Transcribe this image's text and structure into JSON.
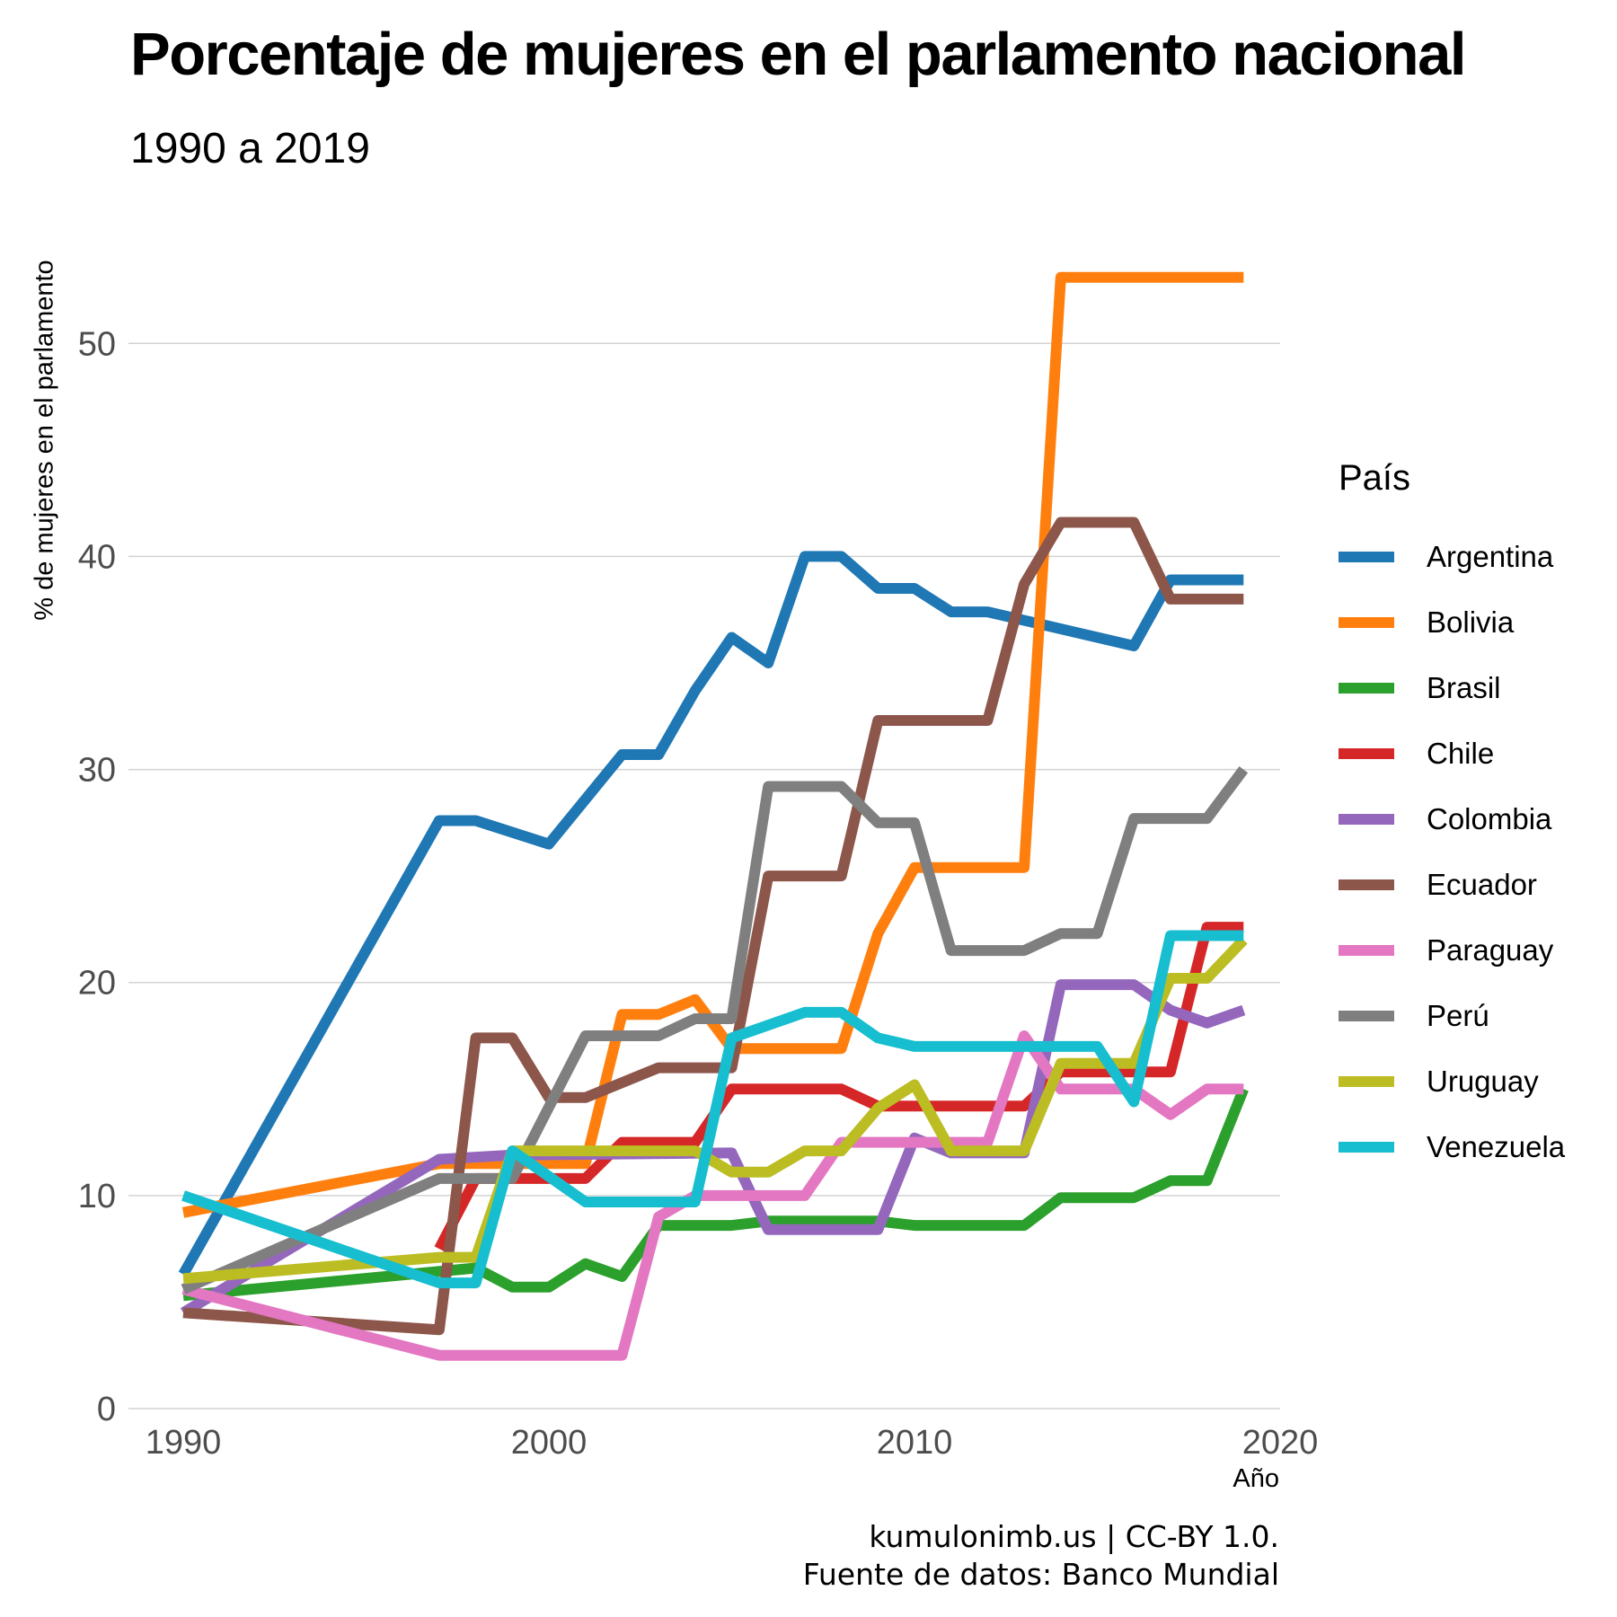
{
  "chart_data": {
    "type": "line",
    "title": "Porcentaje de mujeres en el parlamento nacional",
    "subtitle": "1990 a 2019",
    "xlabel": "Año",
    "ylabel": "% de mujeres en el parlamento",
    "legend_title": "País",
    "caption_line1": "kumulonimb.us | CC-BY 1.0.",
    "caption_line2": "Fuente de datos: Banco Mundial",
    "xlim": [
      1988.5,
      2020
    ],
    "ylim": [
      0,
      56
    ],
    "x_ticks": [
      1990,
      2000,
      2010,
      2020
    ],
    "y_ticks": [
      0,
      10,
      20,
      30,
      40,
      50
    ],
    "grid": "horizontal",
    "legend_position": "right",
    "series": [
      {
        "name": "Argentina",
        "color": "#1f77b4",
        "points": [
          [
            1990,
            6.3
          ],
          [
            1997,
            27.6
          ],
          [
            1998,
            27.6
          ],
          [
            2000,
            26.5
          ],
          [
            2002,
            30.7
          ],
          [
            2003,
            30.7
          ],
          [
            2004,
            33.7
          ],
          [
            2005,
            36.2
          ],
          [
            2006,
            35.0
          ],
          [
            2007,
            40.0
          ],
          [
            2008,
            40.0
          ],
          [
            2009,
            38.5
          ],
          [
            2010,
            38.5
          ],
          [
            2011,
            37.4
          ],
          [
            2012,
            37.4
          ],
          [
            2016,
            35.8
          ],
          [
            2017,
            38.9
          ],
          [
            2019,
            38.9
          ]
        ]
      },
      {
        "name": "Bolivia",
        "color": "#ff7f0e",
        "points": [
          [
            1990,
            9.2
          ],
          [
            1997,
            11.5
          ],
          [
            2001,
            11.5
          ],
          [
            2002,
            18.5
          ],
          [
            2003,
            18.5
          ],
          [
            2004,
            19.2
          ],
          [
            2005,
            16.9
          ],
          [
            2008,
            16.9
          ],
          [
            2009,
            22.3
          ],
          [
            2010,
            25.4
          ],
          [
            2013,
            25.4
          ],
          [
            2014,
            53.1
          ],
          [
            2019,
            53.1
          ]
        ]
      },
      {
        "name": "Brasil",
        "color": "#2ca02c",
        "points": [
          [
            1990,
            5.3
          ],
          [
            1998,
            6.6
          ],
          [
            1999,
            5.7
          ],
          [
            2000,
            5.7
          ],
          [
            2001,
            6.8
          ],
          [
            2002,
            6.2
          ],
          [
            2003,
            8.6
          ],
          [
            2005,
            8.6
          ],
          [
            2006,
            8.8
          ],
          [
            2009,
            8.8
          ],
          [
            2010,
            8.6
          ],
          [
            2013,
            8.6
          ],
          [
            2014,
            9.9
          ],
          [
            2016,
            9.9
          ],
          [
            2017,
            10.7
          ],
          [
            2018,
            10.7
          ],
          [
            2019,
            15.0
          ]
        ]
      },
      {
        "name": "Chile",
        "color": "#d62728",
        "points": [
          [
            1997,
            7.5
          ],
          [
            1998,
            10.8
          ],
          [
            2001,
            10.8
          ],
          [
            2002,
            12.5
          ],
          [
            2004,
            12.5
          ],
          [
            2005,
            15.0
          ],
          [
            2008,
            15.0
          ],
          [
            2009,
            14.2
          ],
          [
            2013,
            14.2
          ],
          [
            2014,
            15.8
          ],
          [
            2017,
            15.8
          ],
          [
            2018,
            22.6
          ],
          [
            2019,
            22.6
          ]
        ]
      },
      {
        "name": "Colombia",
        "color": "#9467bd",
        "points": [
          [
            1990,
            4.5
          ],
          [
            1997,
            11.7
          ],
          [
            1999,
            11.9
          ],
          [
            2005,
            12.0
          ],
          [
            2006,
            8.4
          ],
          [
            2009,
            8.4
          ],
          [
            2010,
            12.7
          ],
          [
            2011,
            12.0
          ],
          [
            2013,
            12.0
          ],
          [
            2014,
            19.9
          ],
          [
            2016,
            19.9
          ],
          [
            2017,
            18.7
          ],
          [
            2018,
            18.1
          ],
          [
            2019,
            18.7
          ]
        ]
      },
      {
        "name": "Ecuador",
        "color": "#8c564b",
        "points": [
          [
            1990,
            4.5
          ],
          [
            1997,
            3.7
          ],
          [
            1998,
            17.4
          ],
          [
            1999,
            17.4
          ],
          [
            2000,
            14.6
          ],
          [
            2001,
            14.6
          ],
          [
            2003,
            16.0
          ],
          [
            2005,
            16.0
          ],
          [
            2006,
            25.0
          ],
          [
            2008,
            25.0
          ],
          [
            2009,
            32.3
          ],
          [
            2012,
            32.3
          ],
          [
            2013,
            38.7
          ],
          [
            2014,
            41.6
          ],
          [
            2016,
            41.6
          ],
          [
            2017,
            38.0
          ],
          [
            2019,
            38.0
          ]
        ]
      },
      {
        "name": "Paraguay",
        "color": "#e377c2",
        "points": [
          [
            1990,
            5.6
          ],
          [
            1997,
            2.5
          ],
          [
            2002,
            2.5
          ],
          [
            2003,
            9.0
          ],
          [
            2004,
            10.0
          ],
          [
            2007,
            10.0
          ],
          [
            2008,
            12.5
          ],
          [
            2012,
            12.5
          ],
          [
            2013,
            17.5
          ],
          [
            2014,
            15.0
          ],
          [
            2016,
            15.0
          ],
          [
            2017,
            13.8
          ],
          [
            2018,
            15.0
          ],
          [
            2019,
            15.0
          ]
        ]
      },
      {
        "name": "Perú",
        "color": "#7f7f7f",
        "points": [
          [
            1990,
            5.6
          ],
          [
            1997,
            10.8
          ],
          [
            1999,
            10.8
          ],
          [
            2001,
            17.5
          ],
          [
            2003,
            17.5
          ],
          [
            2004,
            18.3
          ],
          [
            2005,
            18.3
          ],
          [
            2006,
            29.2
          ],
          [
            2008,
            29.2
          ],
          [
            2009,
            27.5
          ],
          [
            2010,
            27.5
          ],
          [
            2011,
            21.5
          ],
          [
            2013,
            21.5
          ],
          [
            2014,
            22.3
          ],
          [
            2015,
            22.3
          ],
          [
            2016,
            27.7
          ],
          [
            2018,
            27.7
          ],
          [
            2019,
            30.0
          ]
        ]
      },
      {
        "name": "Uruguay",
        "color": "#bcbd22",
        "points": [
          [
            1990,
            6.1
          ],
          [
            1997,
            7.1
          ],
          [
            1998,
            7.1
          ],
          [
            1999,
            12.1
          ],
          [
            2004,
            12.1
          ],
          [
            2005,
            11.1
          ],
          [
            2006,
            11.1
          ],
          [
            2007,
            12.1
          ],
          [
            2008,
            12.1
          ],
          [
            2009,
            14.1
          ],
          [
            2010,
            15.2
          ],
          [
            2011,
            12.1
          ],
          [
            2013,
            12.1
          ],
          [
            2014,
            16.2
          ],
          [
            2016,
            16.2
          ],
          [
            2017,
            20.2
          ],
          [
            2018,
            20.2
          ],
          [
            2019,
            22.0
          ]
        ]
      },
      {
        "name": "Venezuela",
        "color": "#17becf",
        "points": [
          [
            1990,
            10.0
          ],
          [
            1997,
            5.9
          ],
          [
            1998,
            5.9
          ],
          [
            1999,
            12.1
          ],
          [
            2001,
            9.7
          ],
          [
            2004,
            9.7
          ],
          [
            2005,
            17.4
          ],
          [
            2007,
            18.6
          ],
          [
            2008,
            18.6
          ],
          [
            2009,
            17.4
          ],
          [
            2010,
            17.0
          ],
          [
            2015,
            17.0
          ],
          [
            2016,
            14.4
          ],
          [
            2017,
            22.2
          ],
          [
            2019,
            22.2
          ]
        ]
      }
    ]
  }
}
